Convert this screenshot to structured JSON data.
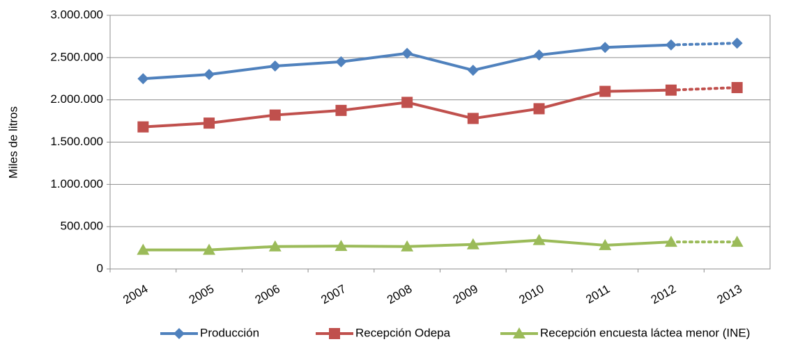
{
  "chart_data": {
    "type": "line",
    "y_label": "Miles de litros",
    "categories": [
      "2004",
      "2005",
      "2006",
      "2007",
      "2008",
      "2009",
      "2010",
      "2011",
      "2012",
      "2013"
    ],
    "dotted_from": "2012",
    "series": [
      {
        "name": "Producción",
        "color": "#4f81bd",
        "marker": "diamond",
        "values": [
          2250000,
          2300000,
          2400000,
          2450000,
          2550000,
          2350000,
          2530000,
          2620000,
          2650000,
          2670000
        ]
      },
      {
        "name": "Recepción Odepa",
        "color": "#c0504d",
        "marker": "square",
        "values": [
          1680000,
          1725000,
          1820000,
          1875000,
          1970000,
          1780000,
          1895000,
          2100000,
          2115000,
          2145000
        ]
      },
      {
        "name": "Recepción encuesta láctea menor (INE)",
        "color": "#9bbb59",
        "marker": "triangle",
        "values": [
          225000,
          225000,
          265000,
          270000,
          265000,
          290000,
          340000,
          280000,
          320000,
          320000
        ]
      }
    ],
    "ylim": [
      0,
      3000000
    ],
    "yticks": [
      0,
      {
        "value": 500000,
        "label": "500.000"
      },
      {
        "value": 1000000,
        "label": "1.000.000"
      },
      {
        "value": 1500000,
        "label": "1.500.000"
      },
      {
        "value": 2000000,
        "label": "2.000.000"
      },
      {
        "value": 2500000,
        "label": "2.500.000"
      },
      {
        "value": 3000000,
        "label": "3.000.000"
      }
    ],
    "grid": true,
    "legend": "bottom"
  }
}
